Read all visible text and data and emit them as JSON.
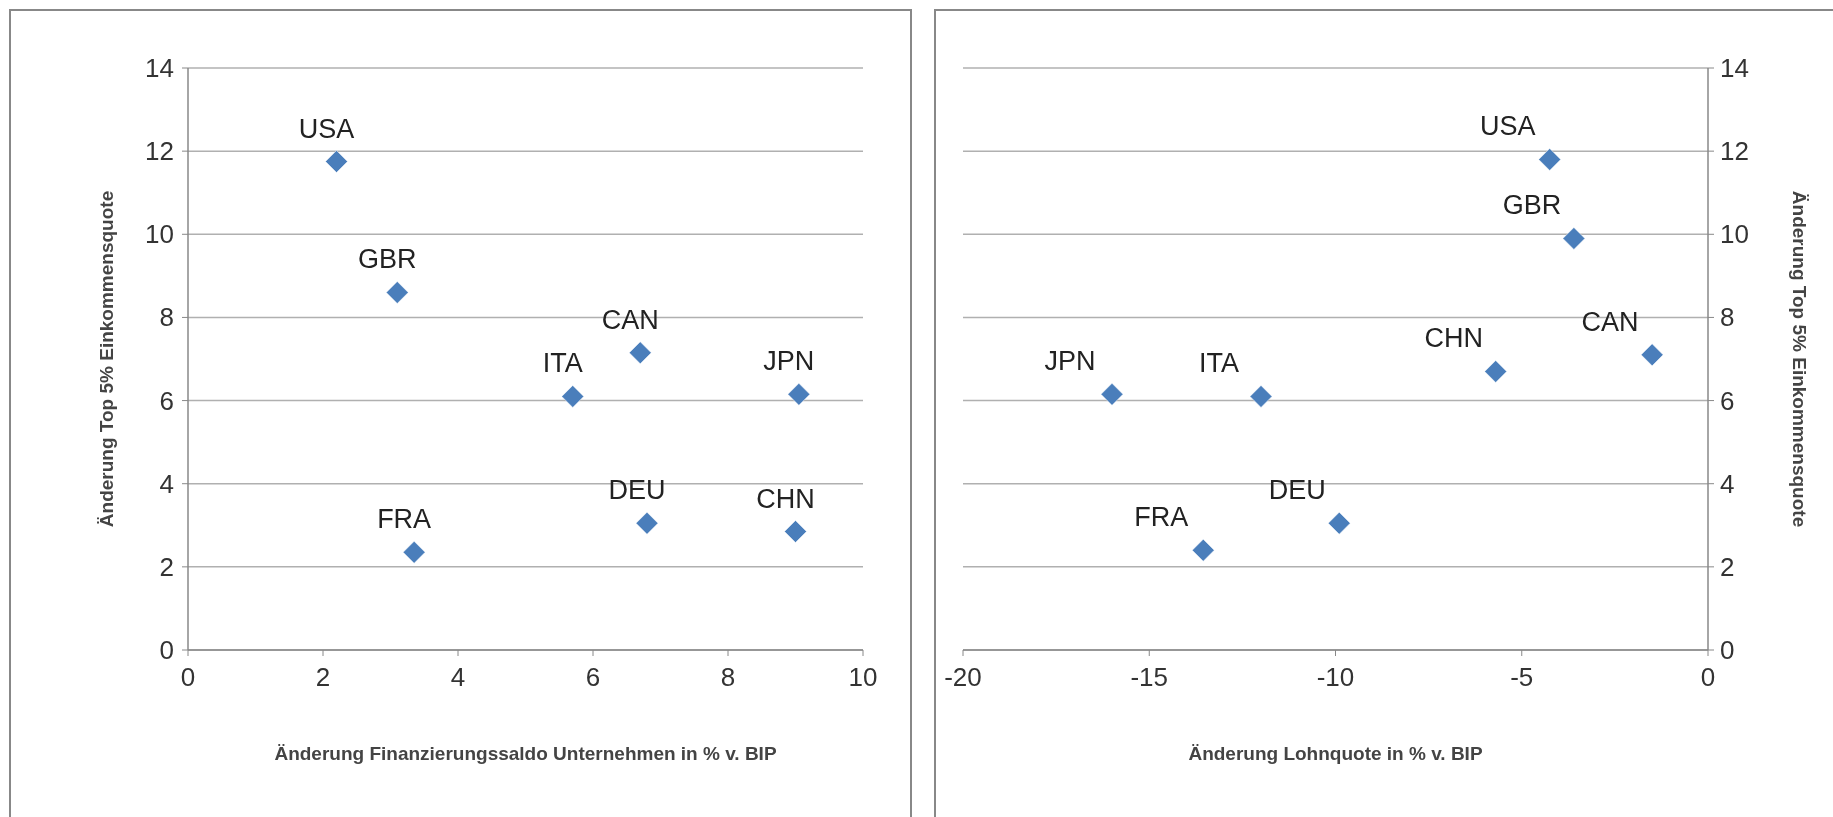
{
  "chart_data": [
    {
      "type": "scatter",
      "xlabel": "Änderung Finanzierungssaldo Unternehmen in % v. BIP",
      "ylabel": "Änderung Top 5% Einkommensquote",
      "marker": "diamond",
      "grid": "y",
      "series": [
        {
          "color": "#4a7ebb",
          "x": [
            2.2,
            3.1,
            5.7,
            6.7,
            9.05,
            3.35,
            6.8,
            9.0
          ],
          "values": [
            11.75,
            8.6,
            6.1,
            7.15,
            6.15,
            2.35,
            3.05,
            2.85
          ]
        }
      ],
      "xlim": [
        0,
        10
      ],
      "xticks": [
        0,
        2,
        4,
        6,
        8,
        10
      ],
      "ylim": [
        0,
        14
      ],
      "yticks": [
        0,
        2,
        4,
        6,
        8,
        10,
        12,
        14
      ],
      "annotations": [
        {
          "text": "USA",
          "x": 2.2,
          "y": 11.75
        },
        {
          "text": "GBR",
          "x": 3.1,
          "y": 8.6
        },
        {
          "text": "ITA",
          "x": 5.7,
          "y": 6.1
        },
        {
          "text": "CAN",
          "x": 6.7,
          "y": 7.15
        },
        {
          "text": "JPN",
          "x": 9.05,
          "y": 6.15
        },
        {
          "text": "FRA",
          "x": 3.35,
          "y": 2.35
        },
        {
          "text": "DEU",
          "x": 6.8,
          "y": 3.05
        },
        {
          "text": "CHN",
          "x": 9.0,
          "y": 2.85
        }
      ]
    },
    {
      "type": "scatter",
      "xlabel": "Änderung Lohnquote in % v. BIP",
      "y2label": "Änderung Top 5% Einkommensquote",
      "marker": "diamond",
      "grid": "y",
      "series": [
        {
          "color": "#4a7ebb",
          "axis": "y2",
          "x": [
            -4.25,
            -3.6,
            -5.7,
            -1.5,
            -16.0,
            -12.0,
            -13.55,
            -9.9
          ],
          "values": [
            11.8,
            9.9,
            6.7,
            7.1,
            6.15,
            6.1,
            2.4,
            3.05
          ]
        }
      ],
      "xlim": [
        -20,
        0
      ],
      "xticks": [
        -20,
        -15,
        -10,
        -5,
        0
      ],
      "y2lim": [
        0,
        14
      ],
      "y2ticks": [
        0,
        2,
        4,
        6,
        8,
        10,
        12,
        14
      ],
      "annotations": [
        "USA",
        "GBR",
        "CHN",
        "CAN",
        "JPN",
        "ITA",
        "FRA",
        "DEU"
      ]
    }
  ]
}
